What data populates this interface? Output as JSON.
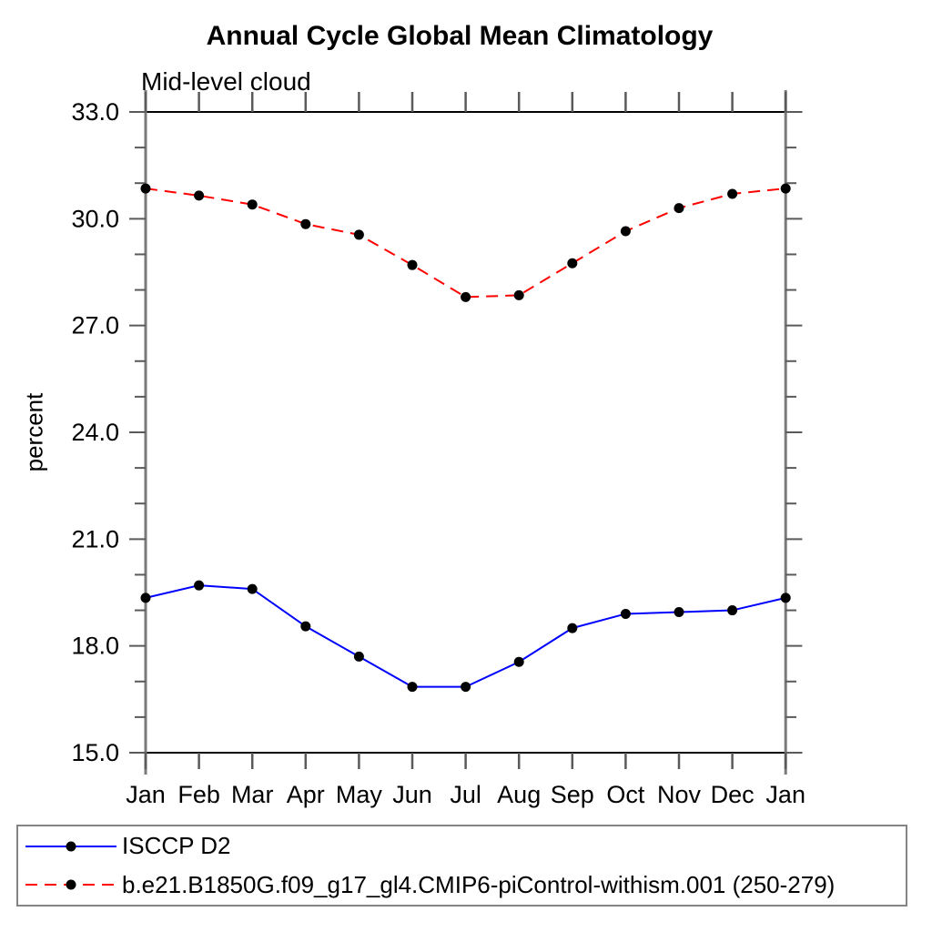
{
  "chart_data": {
    "type": "line",
    "title": "Annual Cycle Global Mean Climatology",
    "subtitle": "Mid-level cloud",
    "xlabel": "",
    "ylabel": "percent",
    "categories": [
      "Jan",
      "Feb",
      "Mar",
      "Apr",
      "May",
      "Jun",
      "Jul",
      "Aug",
      "Sep",
      "Oct",
      "Nov",
      "Dec",
      "Jan"
    ],
    "ylim": [
      15.0,
      33.0
    ],
    "ytick_major_values": [
      15.0,
      18.0,
      21.0,
      24.0,
      27.0,
      30.0,
      33.0
    ],
    "ytick_major_labels": [
      "15.0",
      "18.0",
      "21.0",
      "24.0",
      "27.0",
      "30.0",
      "33.0"
    ],
    "ytick_minor_step": 1.0,
    "grid": false,
    "legend_position": "bottom-left",
    "series": [
      {
        "name": "ISCCP D2",
        "line_style": "solid",
        "line_color": "#0000ff",
        "marker": "filled-circle",
        "marker_color": "#000000",
        "values": [
          19.35,
          19.7,
          19.6,
          18.55,
          17.7,
          16.85,
          16.85,
          17.55,
          18.5,
          18.9,
          18.95,
          19.0,
          19.35
        ]
      },
      {
        "name": "b.e21.B1850G.f09_g17_gl4.CMIP6-piControl-withism.001 (250-279)",
        "line_style": "dashed",
        "line_color": "#ff0000",
        "marker": "filled-circle",
        "marker_color": "#000000",
        "values": [
          30.85,
          30.65,
          30.4,
          29.85,
          29.55,
          28.7,
          27.8,
          27.85,
          28.75,
          29.65,
          30.3,
          30.7,
          30.85
        ]
      }
    ],
    "colors": {
      "frame_horizontal": "#000000",
      "frame_vertical": "#7a7a7a",
      "tick": "#5a5a5a",
      "text": "#000000",
      "legend_border": "#848484"
    }
  }
}
